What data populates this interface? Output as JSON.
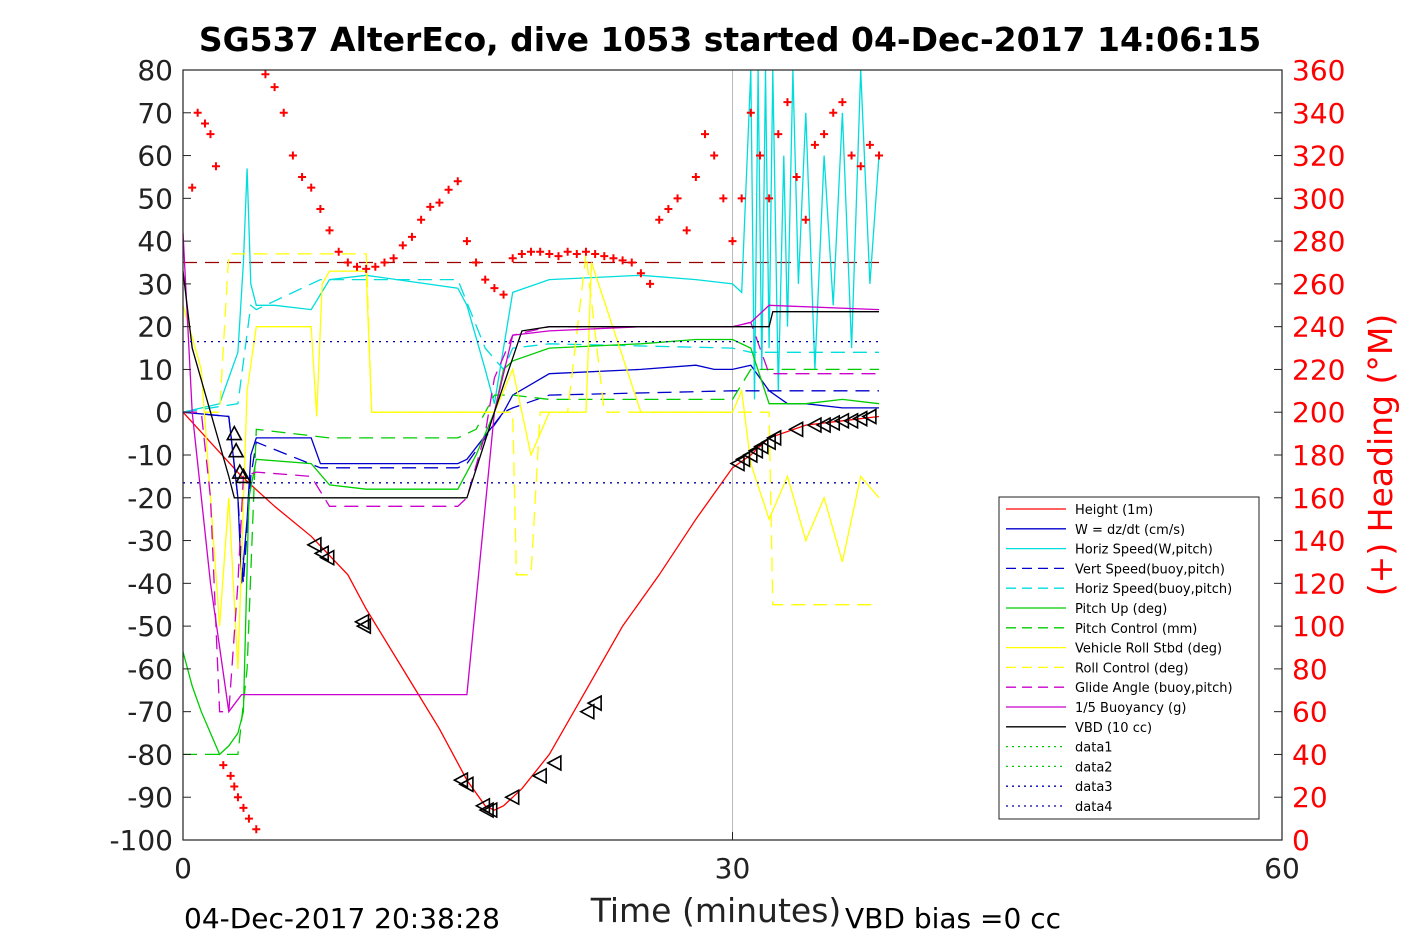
{
  "chart_data": {
    "type": "line",
    "title": "SG537 AlterEco, dive 1053 started 04-Dec-2017 14:06:15",
    "xlabel": "Time (minutes)",
    "ylabel": "",
    "y2label": "(+) Heading (°M)",
    "xlim": [
      0,
      60
    ],
    "ylim": [
      -100,
      80
    ],
    "y2lim": [
      0,
      360
    ],
    "xticks": [
      "0",
      "30",
      "60"
    ],
    "yticks": [
      "80",
      "70",
      "60",
      "50",
      "40",
      "30",
      "20",
      "10",
      "0",
      "-10",
      "-20",
      "-30",
      "-40",
      "-50",
      "-60",
      "-70",
      "-80",
      "-90",
      "-100"
    ],
    "y2ticks": [
      "360",
      "340",
      "320",
      "300",
      "280",
      "260",
      "240",
      "220",
      "200",
      "180",
      "160",
      "140",
      "120",
      "100",
      "80",
      "60",
      "40",
      "20",
      "0"
    ],
    "grid_x": [
      30
    ],
    "legend_position": "lower-right",
    "footer_left": "04-Dec-2017 20:38:28",
    "footer_right": "VBD bias =0 cc",
    "colors": {
      "height": "#ff0000",
      "w": "#0000cc",
      "horiz_w": "#00dddd",
      "vert_buoy": "#0000cc",
      "horiz_buoy": "#00dddd",
      "pitch_up": "#00cc00",
      "pitch_ctrl": "#00cc00",
      "roll": "#ffff00",
      "roll_ctrl": "#ffff00",
      "glide": "#cc00cc",
      "buoy": "#cc00cc",
      "vbd": "#000000",
      "heading": "#ff0000"
    },
    "series": [
      {
        "name": "Height (1m)",
        "key": "height",
        "style": "solid",
        "x": [
          0,
          3.2,
          5,
          7,
          9,
          10,
          12,
          14,
          15.5,
          16.5,
          17,
          17.5,
          18.5,
          20,
          22,
          24,
          26,
          28,
          30,
          31,
          32,
          34,
          36,
          38
        ],
        "y": [
          0,
          -15,
          -22,
          -29,
          -38,
          -46,
          -60,
          -74,
          -86,
          -92,
          -93,
          -92,
          -88,
          -80,
          -65,
          -50,
          -38,
          -25,
          -13,
          -10,
          -6,
          -3,
          -2,
          -1
        ]
      },
      {
        "name": "W = dz/dt (cm/s)",
        "key": "w",
        "style": "solid",
        "x": [
          0,
          2.5,
          3,
          3.2,
          3.5,
          3.7,
          4,
          7,
          7.5,
          10,
          15,
          15.5,
          17.5,
          18,
          20,
          25,
          28,
          29,
          30,
          31,
          32,
          33,
          34,
          36,
          38
        ],
        "y": [
          0,
          -1,
          -20,
          -40,
          -25,
          -10,
          -6,
          -6,
          -12,
          -12,
          -12,
          -11,
          0,
          4,
          9,
          10,
          11,
          10,
          10,
          11,
          5,
          2,
          2,
          1,
          1
        ]
      },
      {
        "name": "Horiz Speed(W,pitch)",
        "key": "horiz_w",
        "style": "solid",
        "x": [
          0,
          2,
          3,
          3.3,
          3.5,
          3.7,
          4,
          5,
          7,
          8,
          10,
          15,
          15.5,
          16.5,
          17,
          18,
          20,
          25,
          28,
          30,
          30.5,
          31,
          31.2,
          31.4,
          31.6,
          31.8,
          32,
          32.2,
          32.5,
          32.8,
          33,
          33.3,
          33.6,
          34,
          34.5,
          35,
          35.5,
          36,
          36.5,
          37,
          37.5,
          38
        ],
        "y": [
          0,
          2,
          14,
          35,
          57,
          30,
          25,
          25,
          24,
          31,
          32,
          29,
          25,
          10,
          2,
          28,
          31,
          32,
          31,
          30,
          28,
          80,
          3,
          80,
          10,
          80,
          15,
          80,
          5,
          60,
          20,
          80,
          30,
          70,
          10,
          60,
          25,
          70,
          15,
          80,
          30,
          60
        ]
      },
      {
        "name": "Vert Speed(buoy,pitch)",
        "key": "vert_buoy",
        "style": "dashed",
        "x": [
          0,
          2.5,
          3,
          3.3,
          3.7,
          4,
          7.5,
          15,
          15.5,
          17.5,
          18,
          20,
          30,
          31,
          38
        ],
        "y": [
          0,
          -1,
          -20,
          -40,
          -15,
          -7,
          -13,
          -13,
          -12,
          0,
          1,
          4,
          5,
          5,
          5
        ]
      },
      {
        "name": "Horiz Speed(buoy,pitch)",
        "key": "horiz_buoy",
        "style": "dashed",
        "x": [
          0,
          3,
          3.7,
          4,
          7.5,
          15,
          16.5,
          17.5,
          18,
          20,
          30,
          31,
          38
        ],
        "y": [
          0,
          2,
          25,
          24,
          31,
          31,
          15,
          10,
          15,
          16,
          15,
          14,
          14
        ]
      },
      {
        "name": "Pitch Up (deg)",
        "key": "pitch_up",
        "style": "solid",
        "x": [
          0,
          0.5,
          1,
          1.5,
          2,
          2.5,
          3,
          3.3,
          3.6,
          4,
          7,
          8,
          10,
          12,
          15,
          16,
          17,
          17.5,
          18,
          20,
          25,
          28,
          30,
          31,
          32,
          34,
          36,
          38
        ],
        "y": [
          -56,
          -64,
          -70,
          -75,
          -80,
          -78,
          -75,
          -70,
          -20,
          -11,
          -12,
          -17,
          -18,
          -18,
          -18,
          -10,
          0,
          10,
          12,
          15,
          16,
          17,
          17,
          15,
          2,
          2,
          3,
          2
        ]
      },
      {
        "name": "Pitch Control (mm)",
        "key": "pitch_ctrl",
        "style": "dashed",
        "x": [
          0,
          2.5,
          3,
          3.5,
          4,
          8,
          15,
          16,
          17,
          18,
          20,
          25,
          30,
          31,
          32,
          38
        ],
        "y": [
          -80,
          -80,
          -80,
          -60,
          -4,
          -6,
          -6,
          -4,
          4,
          4,
          3,
          3,
          3,
          10,
          10,
          10
        ]
      },
      {
        "name": "Vehicle Roll Stbd (deg)",
        "key": "roll",
        "style": "solid",
        "x": [
          0,
          1,
          2,
          2.5,
          3,
          3.5,
          4,
          7,
          7.3,
          7.6,
          8,
          10,
          10.3,
          15,
          16,
          17,
          18,
          19,
          19.5,
          20,
          22,
          22.3,
          25,
          28,
          30,
          30.5,
          31,
          32,
          33,
          34,
          35,
          36,
          37,
          38
        ],
        "y": [
          25,
          10,
          -50,
          -20,
          -60,
          5,
          20,
          20,
          -1,
          30,
          33,
          33,
          0,
          0,
          0,
          0,
          10,
          -10,
          -5,
          0,
          0,
          35,
          0,
          0,
          0,
          5,
          -12,
          -25,
          -15,
          -30,
          -20,
          -35,
          -15,
          -20
        ]
      },
      {
        "name": "Roll Control (deg)",
        "key": "roll_ctrl",
        "style": "dashed",
        "x": [
          0,
          2,
          2.5,
          3,
          4,
          7,
          7.5,
          10,
          10.3,
          15,
          16,
          17,
          18,
          18.2,
          19,
          19.5,
          21,
          22,
          23,
          30,
          31,
          32,
          32.2,
          38
        ],
        "y": [
          0,
          0,
          37,
          37,
          37,
          37,
          37,
          37,
          0,
          0,
          0,
          0,
          0,
          -38,
          -38,
          0,
          0,
          37,
          0,
          0,
          0,
          0,
          -45,
          -45
        ]
      },
      {
        "name": "Glide Angle (buoy,pitch)",
        "key": "glide",
        "style": "dashed",
        "x": [
          0,
          1,
          1.5,
          2,
          2.5,
          3,
          3.3,
          4,
          7,
          8,
          10,
          15,
          15.5,
          16.5,
          17,
          18,
          20,
          25,
          30,
          31,
          32,
          38
        ],
        "y": [
          0,
          0,
          -20,
          -70,
          -70,
          -40,
          -15,
          -14,
          -15,
          -22,
          -22,
          -22,
          -20,
          -5,
          8,
          18,
          20,
          20,
          20,
          21,
          9,
          9
        ]
      },
      {
        "name": "1/5 Buoyancy (g)",
        "key": "buoy",
        "style": "solid",
        "x": [
          0,
          0.5,
          1.5,
          2.5,
          3.2,
          3.5,
          4,
          15.5,
          17,
          18,
          20,
          25,
          30,
          31,
          32,
          38
        ],
        "y": [
          42,
          0,
          -40,
          -70,
          -66,
          -66,
          -66,
          -66,
          0,
          18,
          19,
          20,
          20,
          21,
          25,
          24
        ]
      },
      {
        "name": "VBD (10 cc)",
        "key": "vbd",
        "style": "solid",
        "x": [
          0,
          0.5,
          1.5,
          2.5,
          2.8,
          3,
          15.5,
          17,
          18.5,
          20,
          30,
          32,
          32.2,
          38
        ],
        "y": [
          33,
          15,
          0,
          -15,
          -20,
          -20,
          -20,
          0,
          19,
          20,
          20,
          20,
          23.5,
          23.5
        ]
      },
      {
        "name": "data1",
        "key": "data1",
        "style": "dotted",
        "x": [],
        "y": []
      },
      {
        "name": "data2",
        "key": "data2",
        "style": "dotted",
        "x": [],
        "y": []
      },
      {
        "name": "data3",
        "key": "data3",
        "style": "dotted",
        "x": [
          0,
          38
        ],
        "y": [
          16.5,
          16.5
        ]
      },
      {
        "name": "data4",
        "key": "data4",
        "style": "dotted",
        "x": [
          0,
          38
        ],
        "y": [
          -16.5,
          -16.5
        ]
      }
    ],
    "reference_line": {
      "y": 35,
      "x": [
        0,
        38
      ],
      "color": "#990000",
      "style": "dashed"
    },
    "heading": {
      "x": [
        0.5,
        0.8,
        1.2,
        1.5,
        1.8,
        2.2,
        2.6,
        2.8,
        3,
        3.3,
        3.6,
        4,
        4.5,
        5,
        5.5,
        6,
        6.5,
        7,
        7.5,
        8,
        8.5,
        9,
        9.5,
        10,
        10.5,
        11,
        11.5,
        12,
        12.5,
        13,
        13.5,
        14,
        14.5,
        15,
        15.5,
        16,
        16.5,
        17,
        17.5,
        18,
        18.5,
        19,
        19.5,
        20,
        20.5,
        21,
        21.5,
        22,
        22.5,
        23,
        23.5,
        24,
        24.5,
        25,
        25.5,
        26,
        26.5,
        27,
        27.5,
        28,
        28.5,
        29,
        29.5,
        30,
        30.5,
        31,
        31.5,
        32,
        32.5,
        33,
        33.5,
        34,
        34.5,
        35,
        35.5,
        36,
        36.5,
        37,
        37.5,
        38
      ],
      "y": [
        305,
        340,
        335,
        330,
        315,
        35,
        30,
        25,
        20,
        15,
        10,
        5,
        358,
        352,
        340,
        320,
        310,
        305,
        295,
        285,
        275,
        270,
        268,
        267,
        268,
        270,
        272,
        278,
        282,
        290,
        296,
        298,
        304,
        308,
        280,
        270,
        262,
        258,
        255,
        272,
        274,
        275,
        275,
        274,
        273,
        275,
        274,
        275,
        274,
        273,
        272,
        271,
        270,
        265,
        260,
        290,
        295,
        300,
        285,
        310,
        330,
        320,
        300,
        280,
        300,
        340,
        320,
        300,
        330,
        345,
        310,
        290,
        325,
        330,
        340,
        345,
        320,
        315,
        325,
        320
      ]
    },
    "markers_left": {
      "x": [
        7.2,
        7.6,
        7.9,
        9.8,
        9.9,
        15.2,
        15.5,
        16.4,
        16.6,
        16.8,
        18,
        19.5,
        20.3,
        22.1,
        22.5,
        30.3,
        30.6,
        31,
        31.3,
        31.6,
        32,
        32.3,
        33.5,
        34.5,
        35,
        35.5,
        36,
        36.5,
        37,
        37.5
      ],
      "y": [
        -31,
        -33,
        -34,
        -49,
        -50,
        -86,
        -87,
        -92,
        -93,
        -93,
        -90,
        -85,
        -82,
        -70,
        -68,
        -12,
        -11,
        -10,
        -9,
        -8,
        -7,
        -6,
        -4,
        -3,
        -3,
        -2.5,
        -2,
        -2,
        -1.5,
        -1
      ]
    },
    "markers_up": {
      "x": [
        2.8,
        2.9,
        3.1,
        3.3
      ],
      "y": [
        -5,
        -9,
        -14,
        -15
      ]
    }
  }
}
